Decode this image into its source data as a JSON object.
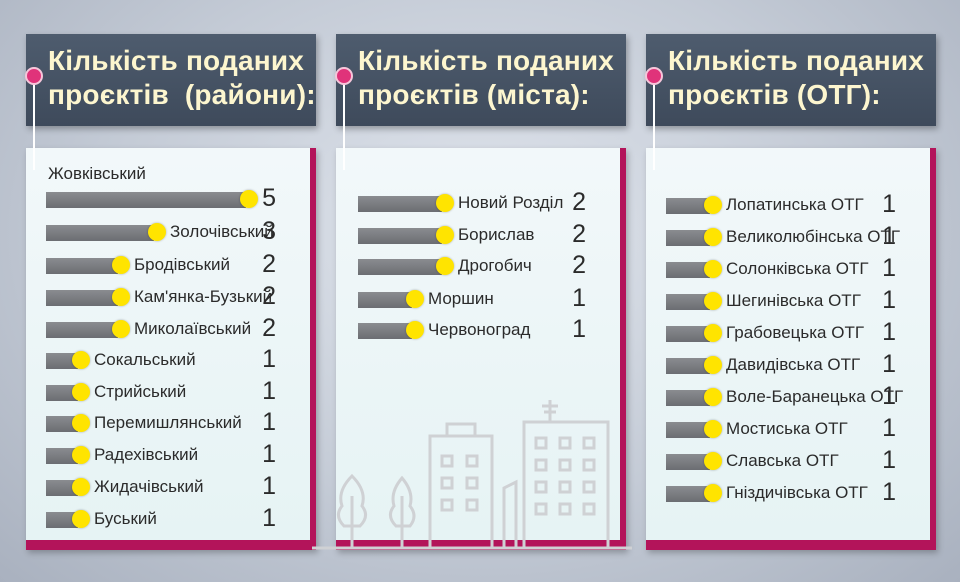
{
  "colors": {
    "bar": "#7a7c80",
    "dot": "#ffe400",
    "accent": "#b3145a",
    "header": "#465366",
    "title": "#fdf6cf"
  },
  "chart_data": [
    {
      "type": "bar",
      "title": "Кількість поданих\nпроєктів  (райони):",
      "categories": [
        "Жовківський",
        "Золочівський",
        "Бродівський",
        "Кам'янка-Бузький",
        "Миколаївський",
        "Сокальський",
        "Стрийський",
        "Перемишлянський",
        "Радехівський",
        "Жидачівський",
        "Буський"
      ],
      "values": [
        5,
        3,
        2,
        2,
        2,
        1,
        1,
        1,
        1,
        1,
        1
      ]
    },
    {
      "type": "bar",
      "title": "Кількість поданих\nпроєктів (міста):",
      "categories": [
        "Новий Розділ",
        "Борислав",
        "Дрогобич",
        "Моршин",
        "Червоноград"
      ],
      "values": [
        2,
        2,
        2,
        1,
        1
      ]
    },
    {
      "type": "bar",
      "title": "Кількість поданих\nпроєктів (ОТГ):",
      "categories": [
        "Лопатинська ОТГ",
        "Великолюбінська ОТГ",
        "Солонківська ОТГ",
        "Шегинівська ОТГ",
        "Грабовецька ОТГ",
        "Давидівська ОТГ",
        "Воле-Баранецька ОТГ",
        "Мостиська ОТГ",
        "Славська ОТГ",
        "Гніздичівська ОТГ"
      ],
      "values": [
        1,
        1,
        1,
        1,
        1,
        1,
        1,
        1,
        1,
        1
      ]
    }
  ]
}
